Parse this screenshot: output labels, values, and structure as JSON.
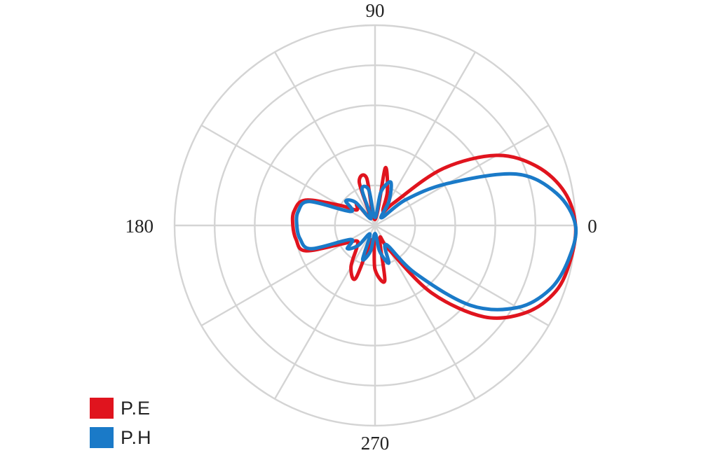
{
  "chart_data": {
    "type": "line",
    "projection": "polar",
    "title": "",
    "angle_tick_labels": [
      "0",
      "90",
      "180",
      "270"
    ],
    "angle_unit": "degrees",
    "angle_grid_step": 30,
    "radial_rings": 5,
    "radial_max": 1.0,
    "grid": true,
    "legend_position": "bottom-left",
    "series": [
      {
        "name": "P.E",
        "color": "#e0141e",
        "angles": [
          0,
          10,
          20,
          30,
          40,
          50,
          60,
          70,
          80,
          90,
          100,
          110,
          120,
          130,
          140,
          150,
          160,
          170,
          180,
          190,
          200,
          210,
          220,
          230,
          240,
          250,
          260,
          270,
          280,
          290,
          300,
          310,
          320,
          330,
          340,
          350,
          360
        ],
        "r": [
          1.0,
          0.96,
          0.86,
          0.7,
          0.44,
          0.15,
          0.08,
          0.18,
          0.29,
          0.03,
          0.24,
          0.23,
          0.05,
          0.14,
          0.12,
          0.2,
          0.37,
          0.41,
          0.41,
          0.4,
          0.37,
          0.18,
          0.12,
          0.14,
          0.24,
          0.28,
          0.07,
          0.22,
          0.28,
          0.07,
          0.14,
          0.44,
          0.71,
          0.87,
          0.96,
          0.99,
          1.0
        ]
      },
      {
        "name": "P.H",
        "color": "#1a7ac8",
        "angles": [
          0,
          10,
          20,
          30,
          40,
          50,
          60,
          70,
          80,
          90,
          100,
          110,
          120,
          130,
          140,
          150,
          160,
          170,
          180,
          190,
          200,
          210,
          220,
          230,
          240,
          250,
          260,
          270,
          280,
          290,
          300,
          310,
          320,
          330,
          340,
          350,
          360
        ],
        "r": [
          1.0,
          0.92,
          0.75,
          0.42,
          0.2,
          0.05,
          0.14,
          0.23,
          0.17,
          0.04,
          0.18,
          0.19,
          0.04,
          0.15,
          0.19,
          0.14,
          0.35,
          0.39,
          0.39,
          0.38,
          0.34,
          0.14,
          0.18,
          0.13,
          0.05,
          0.18,
          0.13,
          0.04,
          0.13,
          0.2,
          0.11,
          0.31,
          0.62,
          0.82,
          0.93,
          0.98,
          1.0
        ]
      }
    ]
  }
}
